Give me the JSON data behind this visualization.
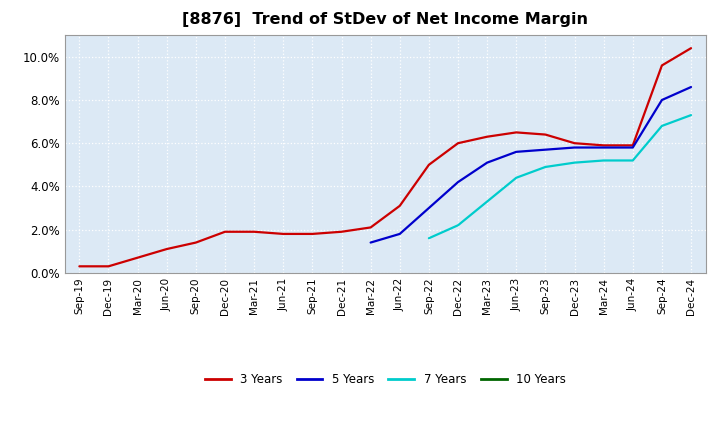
{
  "title": "[8876]  Trend of StDev of Net Income Margin",
  "title_fontsize": 11.5,
  "background_color": "#ffffff",
  "plot_background": "#dce9f5",
  "grid_color": "#ffffff",
  "ylim": [
    0.0,
    0.11
  ],
  "yticks": [
    0.0,
    0.02,
    0.04,
    0.06,
    0.08,
    0.1
  ],
  "xtick_labels": [
    "Sep-19",
    "Dec-19",
    "Mar-20",
    "Jun-20",
    "Sep-20",
    "Dec-20",
    "Mar-21",
    "Jun-21",
    "Sep-21",
    "Dec-21",
    "Mar-22",
    "Jun-22",
    "Sep-22",
    "Dec-22",
    "Mar-23",
    "Jun-23",
    "Sep-23",
    "Dec-23",
    "Mar-24",
    "Jun-24",
    "Sep-24",
    "Dec-24"
  ],
  "series": {
    "3 Years": {
      "color": "#cc0000",
      "values": [
        0.003,
        0.003,
        0.007,
        0.011,
        0.014,
        0.019,
        0.019,
        0.018,
        0.018,
        0.019,
        0.021,
        0.031,
        0.05,
        0.06,
        0.063,
        0.065,
        0.064,
        0.06,
        0.059,
        0.059,
        0.096,
        0.104
      ]
    },
    "5 Years": {
      "color": "#0000cc",
      "values": [
        null,
        null,
        null,
        null,
        null,
        null,
        null,
        null,
        null,
        null,
        0.014,
        0.018,
        0.03,
        0.042,
        0.051,
        0.056,
        0.057,
        0.058,
        0.058,
        0.058,
        0.08,
        0.086
      ]
    },
    "7 Years": {
      "color": "#00cccc",
      "values": [
        null,
        null,
        null,
        null,
        null,
        null,
        null,
        null,
        null,
        null,
        null,
        null,
        0.016,
        0.022,
        0.033,
        0.044,
        0.049,
        0.051,
        0.052,
        0.052,
        0.068,
        0.073
      ]
    },
    "10 Years": {
      "color": "#006600",
      "values": [
        null,
        null,
        null,
        null,
        null,
        null,
        null,
        null,
        null,
        null,
        null,
        null,
        null,
        null,
        null,
        null,
        null,
        null,
        null,
        null,
        null,
        null
      ]
    }
  },
  "legend_labels": [
    "3 Years",
    "5 Years",
    "7 Years",
    "10 Years"
  ],
  "legend_colors": [
    "#cc0000",
    "#0000cc",
    "#00cccc",
    "#006600"
  ]
}
